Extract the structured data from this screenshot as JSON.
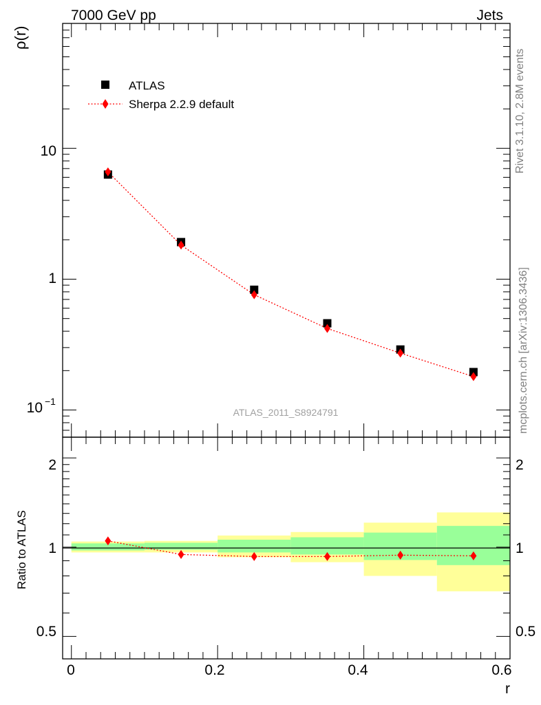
{
  "header": {
    "left": "7000 GeV pp",
    "right": "Jets"
  },
  "side_labels": {
    "rivet": "Rivet 3.1.10,  2.8M events",
    "mcplots": "mcplots.cern.ch [arXiv:1306.3436]"
  },
  "watermark": "ATLAS_2011_S8924791",
  "chart_data": [
    {
      "type": "scatter",
      "panel": "main",
      "ylabel": "ρ(r)",
      "yscale": "log",
      "xlim": [
        -0.012,
        0.6
      ],
      "ylim": [
        0.062,
        90
      ],
      "ytick_labels": [
        "10",
        "1",
        "10"
      ],
      "ytick_exponent": "−1",
      "legend": {
        "placement": "top-left",
        "entries": [
          "ATLAS",
          "Sherpa 2.2.9 default"
        ]
      },
      "series": [
        {
          "name": "ATLAS",
          "marker": "square",
          "color": "#000000",
          "x": [
            0.05,
            0.15,
            0.25,
            0.35,
            0.45,
            0.55
          ],
          "y": [
            6.3,
            1.92,
            0.83,
            0.46,
            0.29,
            0.195
          ]
        },
        {
          "name": "Sherpa 2.2.9 default",
          "marker": "diamond",
          "line": "dotted",
          "color": "#ff0000",
          "x": [
            0.05,
            0.15,
            0.25,
            0.35,
            0.45,
            0.55
          ],
          "y": [
            6.6,
            1.82,
            0.76,
            0.42,
            0.272,
            0.18
          ]
        }
      ]
    },
    {
      "type": "scatter",
      "panel": "ratio",
      "ylabel": "Ratio to ATLAS",
      "xlabel": "r",
      "xlim": [
        -0.012,
        0.6
      ],
      "ylim": [
        0.42,
        2.35
      ],
      "xtick_labels": [
        "0",
        "0.2",
        "0.4",
        "0.6"
      ],
      "ytick_labels": [
        "0.5",
        "1",
        "2"
      ],
      "bands": {
        "bin_edges": [
          0.0,
          0.1,
          0.2,
          0.3,
          0.4,
          0.5,
          0.6
        ],
        "inner_color": "#99ff99",
        "outer_color": "#ffff99",
        "inner_low": [
          0.975,
          0.98,
          0.96,
          0.945,
          0.905,
          0.87
        ],
        "inner_high": [
          1.03,
          1.035,
          1.06,
          1.08,
          1.12,
          1.18
        ],
        "outer_low": [
          0.96,
          0.96,
          0.925,
          0.89,
          0.8,
          0.71
        ],
        "outer_high": [
          1.045,
          1.05,
          1.095,
          1.125,
          1.21,
          1.31
        ]
      },
      "series": [
        {
          "name": "Sherpa 2.2.9 default",
          "marker": "diamond",
          "line": "dotted",
          "color": "#ff0000",
          "x": [
            0.05,
            0.15,
            0.25,
            0.35,
            0.45,
            0.55
          ],
          "y": [
            1.05,
            0.945,
            0.93,
            0.93,
            0.94,
            0.935
          ]
        }
      ]
    }
  ]
}
